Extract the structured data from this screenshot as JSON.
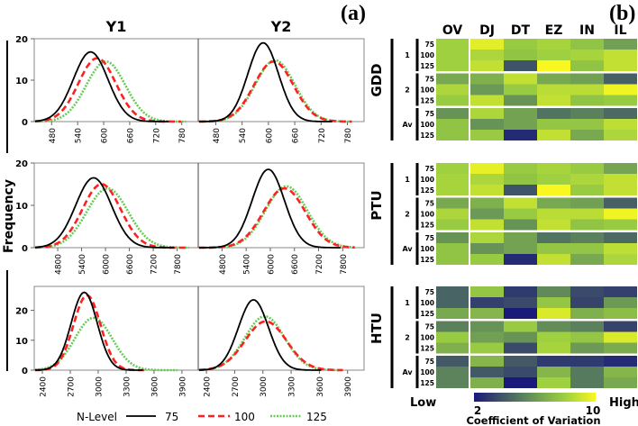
{
  "panel_a": {
    "label": "(a)",
    "ylabel": "Frequency",
    "column_titles": [
      "Y1",
      "Y2"
    ],
    "legend": {
      "title": "N-Level",
      "entries": [
        {
          "name": "75",
          "color": "#000000",
          "style": "solid"
        },
        {
          "name": "100",
          "color": "#ff2020",
          "style": "dashed"
        },
        {
          "name": "125",
          "color": "#66cc55",
          "style": "dotted"
        }
      ]
    }
  },
  "panel_b": {
    "label": "(b)",
    "columns": [
      "OV",
      "DJ",
      "DT",
      "EZ",
      "IN",
      "IL"
    ],
    "groups": [
      "1",
      "2",
      "Av"
    ],
    "rows": [
      "75",
      "100",
      "125"
    ],
    "colorbar": {
      "low_label": "Low",
      "high_label": "High",
      "min": "2",
      "max": "10",
      "title": "Coefficient of Variation",
      "colors": [
        "#1a1a7a",
        "#3a4a6a",
        "#557a5e",
        "#78a850",
        "#9ed040",
        "#f8f820"
      ]
    }
  },
  "chart_data": [
    {
      "type": "line",
      "title": "GDD",
      "ylim": [
        0,
        20
      ],
      "yticks": [
        "0",
        "10",
        "20"
      ],
      "xlim": [
        440,
        818
      ],
      "xticks": [
        "480",
        "540",
        "600",
        "660",
        "720",
        "780"
      ],
      "xtick_values": [
        480,
        540,
        600,
        660,
        720,
        780
      ],
      "xend": 790,
      "panels": [
        {
          "name": "Y1",
          "series": [
            {
              "name": "75",
              "mean": 570,
              "sd": 40,
              "peak": 16.8
            },
            {
              "name": "100",
              "mean": 585,
              "sd": 43,
              "peak": 15.3
            },
            {
              "name": "125",
              "mean": 605,
              "sd": 45,
              "peak": 14.5
            }
          ]
        },
        {
          "name": "Y2",
          "series": [
            {
              "name": "75",
              "mean": 588,
              "sd": 35,
              "peak": 19
            },
            {
              "name": "100",
              "mean": 612,
              "sd": 45,
              "peak": 14.5
            },
            {
              "name": "125",
              "mean": 615,
              "sd": 45,
              "peak": 14.8
            }
          ]
        }
      ]
    },
    {
      "type": "line",
      "title": "PTU",
      "ylim": [
        0,
        20
      ],
      "yticks": [
        "0",
        "10",
        "20"
      ],
      "xlim": [
        4210,
        8330
      ],
      "xticks": [
        "4800",
        "5400",
        "6000",
        "6600",
        "7200",
        "7800"
      ],
      "xtick_values": [
        4800,
        5400,
        6000,
        6600,
        7200,
        7800
      ],
      "xend": 8100,
      "panels": [
        {
          "name": "Y1",
          "series": [
            {
              "name": "75",
              "mean": 5700,
              "sd": 450,
              "peak": 16.5
            },
            {
              "name": "100",
              "mean": 5900,
              "sd": 480,
              "peak": 15
            },
            {
              "name": "125",
              "mean": 6050,
              "sd": 520,
              "peak": 14
            }
          ]
        },
        {
          "name": "Y2",
          "series": [
            {
              "name": "75",
              "mean": 5950,
              "sd": 400,
              "peak": 18.5
            },
            {
              "name": "100",
              "mean": 6350,
              "sd": 520,
              "peak": 14
            },
            {
              "name": "125",
              "mean": 6400,
              "sd": 520,
              "peak": 14.5
            }
          ]
        }
      ]
    },
    {
      "type": "line",
      "title": "HTU",
      "ylim": [
        0,
        28
      ],
      "yticks": [
        "0",
        "10",
        "20"
      ],
      "xlim": [
        2313,
        4075
      ],
      "xticks": [
        "2400",
        "2700",
        "3000",
        "3300",
        "3600",
        "3900"
      ],
      "xtick_values": [
        2400,
        2700,
        3000,
        3300,
        3600,
        3900
      ],
      "xend": 3850,
      "panels": [
        {
          "name": "Y1",
          "series": [
            {
              "name": "75",
              "mean": 2850,
              "sd": 140,
              "peak": 26
            },
            {
              "name": "100",
              "mean": 2880,
              "sd": 145,
              "peak": 25
            },
            {
              "name": "125",
              "mean": 2950,
              "sd": 200,
              "peak": 17.5
            }
          ]
        },
        {
          "name": "Y2",
          "series": [
            {
              "name": "75",
              "mean": 2900,
              "sd": 160,
              "peak": 23.5
            },
            {
              "name": "100",
              "mean": 3030,
              "sd": 220,
              "peak": 16.3
            },
            {
              "name": "125",
              "mean": 3020,
              "sd": 210,
              "peak": 18
            }
          ]
        }
      ]
    },
    {
      "type": "heatmap",
      "title": "Coefficient of Variation",
      "range": [
        2,
        10
      ],
      "blocks": [
        {
          "name": "GDD",
          "values": [
            [
              8,
              9.5,
              7.8,
              8.2,
              7.5,
              6.2
            ],
            [
              8,
              8.3,
              7.5,
              8,
              8.2,
              8.8
            ],
            [
              8,
              8.8,
              3.8,
              10,
              7.5,
              8.8
            ],
            [
              6.5,
              6.8,
              8.8,
              6.5,
              6.2,
              4.2
            ],
            [
              8.3,
              6,
              7.8,
              8.6,
              8.6,
              9.8
            ],
            [
              7.8,
              8.8,
              5.8,
              8.8,
              7.5,
              7.8
            ],
            [
              5.8,
              8.3,
              6.3,
              4.8,
              5.2,
              4.5
            ],
            [
              7.5,
              5.8,
              6.3,
              7.6,
              7.6,
              8.7
            ],
            [
              7.5,
              7.8,
              2.5,
              8.8,
              6.5,
              8.3
            ]
          ]
        },
        {
          "name": "PTU",
          "values": [
            [
              8,
              9.6,
              7.8,
              8.2,
              7.8,
              6.4
            ],
            [
              8.2,
              8.3,
              7.5,
              8,
              8.3,
              8.8
            ],
            [
              8.2,
              8.8,
              3.8,
              10,
              7.8,
              8.8
            ],
            [
              6.5,
              6.8,
              8.8,
              6.5,
              6.2,
              4.2
            ],
            [
              8.3,
              6,
              7.8,
              8.6,
              8.6,
              9.8
            ],
            [
              7.8,
              8.8,
              5.8,
              8.8,
              7.5,
              7.8
            ],
            [
              5.8,
              8.3,
              6.3,
              4.8,
              5.2,
              4.5
            ],
            [
              7.5,
              5.8,
              6.3,
              7.6,
              7.6,
              8.7
            ],
            [
              7.5,
              7.8,
              2.5,
              8.8,
              6.5,
              8.3
            ]
          ]
        },
        {
          "name": "HTU",
          "values": [
            [
              4.3,
              7.6,
              3,
              5.5,
              3.5,
              3.2
            ],
            [
              4.3,
              3.2,
              3.5,
              7.6,
              3.3,
              6
            ],
            [
              6.5,
              7,
              1.8,
              9.3,
              6.8,
              7.3
            ],
            [
              5.2,
              5.8,
              7.8,
              5.6,
              5.2,
              3.3
            ],
            [
              7.8,
              6.2,
              5.8,
              8,
              7.6,
              9.3
            ],
            [
              6.8,
              7.8,
              3.5,
              8.2,
              6,
              6.6
            ],
            [
              4,
              7,
              4,
              3,
              3,
              2.5
            ],
            [
              5.3,
              4,
              3.5,
              7,
              5,
              7
            ],
            [
              5.3,
              6.8,
              1.8,
              8,
              5,
              6.5
            ]
          ]
        }
      ]
    }
  ]
}
